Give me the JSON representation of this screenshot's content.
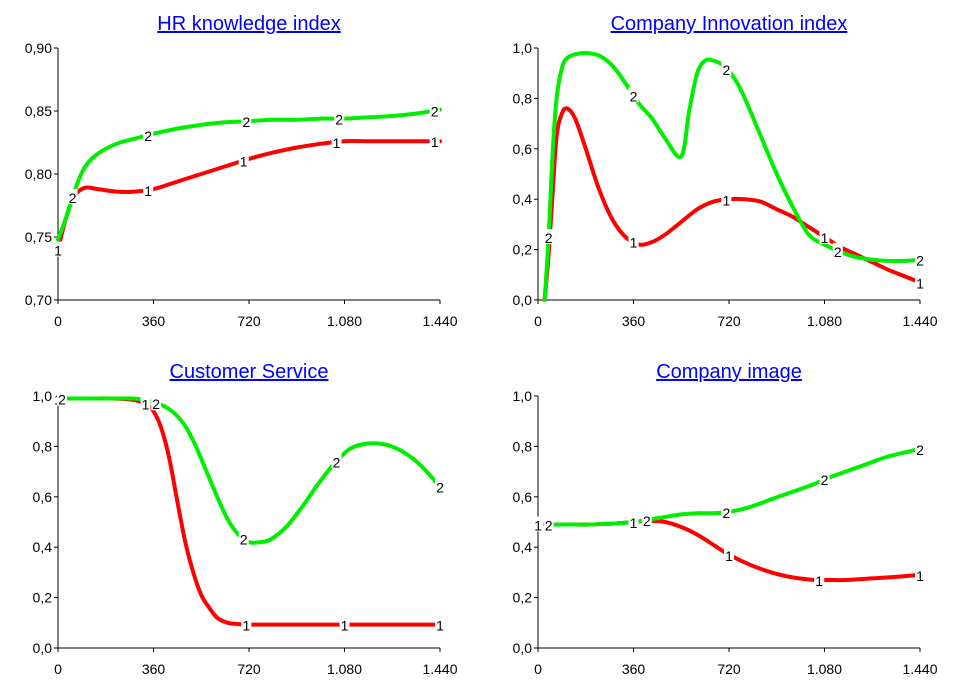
{
  "chart_data": [
    {
      "type": "line",
      "title": "HR knowledge index",
      "xlabel": "",
      "ylabel": "",
      "xlim": [
        0,
        1440
      ],
      "ylim": [
        0.7,
        0.9
      ],
      "x_ticks": [
        "0",
        "360",
        "720",
        "1.080",
        "1.440"
      ],
      "y_ticks": [
        "0,70",
        "0,75",
        "0,80",
        "0,85",
        "0,90"
      ],
      "series": [
        {
          "marker": "1",
          "color": "#ff0000",
          "x": [
            0,
            30,
            60,
            100,
            150,
            220,
            290,
            360,
            450,
            540,
            630,
            720,
            810,
            900,
            990,
            1080,
            1170,
            1260,
            1350,
            1440
          ],
          "y": [
            0.74,
            0.765,
            0.782,
            0.789,
            0.788,
            0.786,
            0.786,
            0.788,
            0.794,
            0.8,
            0.806,
            0.812,
            0.817,
            0.821,
            0.824,
            0.826,
            0.826,
            0.826,
            0.826,
            0.826
          ]
        },
        {
          "marker": "2",
          "color": "#00ee00",
          "x": [
            0,
            30,
            60,
            100,
            150,
            220,
            290,
            360,
            450,
            540,
            630,
            720,
            810,
            900,
            990,
            1080,
            1170,
            1260,
            1350,
            1440
          ],
          "y": [
            0.748,
            0.765,
            0.785,
            0.805,
            0.816,
            0.824,
            0.828,
            0.832,
            0.836,
            0.839,
            0.841,
            0.842,
            0.843,
            0.843,
            0.844,
            0.844,
            0.845,
            0.846,
            0.848,
            0.851
          ]
        }
      ],
      "marker_labels": [
        {
          "text": "1",
          "series": 0,
          "x": 0
        },
        {
          "text": "1",
          "series": 0,
          "x": 340
        },
        {
          "text": "1",
          "series": 0,
          "x": 700
        },
        {
          "text": "1",
          "series": 0,
          "x": 1050
        },
        {
          "text": "1",
          "series": 0,
          "x": 1420
        },
        {
          "text": "2",
          "series": 1,
          "x": 55
        },
        {
          "text": "2",
          "series": 1,
          "x": 340
        },
        {
          "text": "2",
          "series": 1,
          "x": 710
        },
        {
          "text": "2",
          "series": 1,
          "x": 1060
        },
        {
          "text": "2",
          "series": 1,
          "x": 1420
        }
      ]
    },
    {
      "type": "line",
      "title": "Company Innovation index",
      "xlabel": "",
      "ylabel": "",
      "xlim": [
        0,
        1440
      ],
      "ylim": [
        0.0,
        1.0
      ],
      "x_ticks": [
        "0",
        "360",
        "720",
        "1.080",
        "1.440"
      ],
      "y_ticks": [
        "0,0",
        "0,2",
        "0,4",
        "0,6",
        "0,8",
        "1,0"
      ],
      "series": [
        {
          "marker": "1",
          "color": "#ff0000",
          "x": [
            25,
            40,
            55,
            70,
            90,
            110,
            140,
            180,
            230,
            280,
            330,
            380,
            430,
            480,
            540,
            600,
            660,
            720,
            780,
            840,
            900,
            960,
            1020,
            1080,
            1140,
            1200,
            1260,
            1320,
            1380,
            1440
          ],
          "y": [
            0.0,
            0.18,
            0.42,
            0.65,
            0.74,
            0.76,
            0.72,
            0.6,
            0.44,
            0.32,
            0.25,
            0.22,
            0.23,
            0.26,
            0.31,
            0.36,
            0.39,
            0.4,
            0.4,
            0.39,
            0.36,
            0.33,
            0.29,
            0.25,
            0.21,
            0.18,
            0.15,
            0.12,
            0.095,
            0.07
          ]
        },
        {
          "marker": "2",
          "color": "#00ee00",
          "x": [
            25,
            40,
            55,
            70,
            90,
            110,
            140,
            180,
            230,
            280,
            330,
            380,
            430,
            480,
            540,
            570,
            600,
            630,
            660,
            700,
            740,
            780,
            840,
            900,
            960,
            1020,
            1080,
            1140,
            1200,
            1260,
            1320,
            1380,
            1440
          ],
          "y": [
            0.0,
            0.25,
            0.58,
            0.8,
            0.92,
            0.96,
            0.975,
            0.98,
            0.97,
            0.93,
            0.86,
            0.78,
            0.72,
            0.64,
            0.57,
            0.75,
            0.9,
            0.95,
            0.95,
            0.93,
            0.88,
            0.8,
            0.65,
            0.5,
            0.37,
            0.26,
            0.22,
            0.19,
            0.17,
            0.16,
            0.155,
            0.155,
            0.16
          ]
        }
      ],
      "marker_labels": [
        {
          "text": "1",
          "series": 0,
          "x": 360
        },
        {
          "text": "1",
          "series": 0,
          "x": 710
        },
        {
          "text": "1",
          "series": 0,
          "x": 1080
        },
        {
          "text": "1",
          "series": 0,
          "x": 1440
        },
        {
          "text": "2",
          "series": 1,
          "x": 40
        },
        {
          "text": "2",
          "series": 1,
          "x": 360
        },
        {
          "text": "2",
          "series": 1,
          "x": 710
        },
        {
          "text": "2",
          "series": 1,
          "x": 1130
        },
        {
          "text": "2",
          "series": 1,
          "x": 1440
        }
      ]
    },
    {
      "type": "line",
      "title": "Customer Service",
      "xlabel": "",
      "ylabel": "",
      "xlim": [
        0,
        1440
      ],
      "ylim": [
        0.0,
        1.0
      ],
      "x_ticks": [
        "0",
        "360",
        "720",
        "1.080",
        "1.440"
      ],
      "y_ticks": [
        "0,0",
        "0,2",
        "0,4",
        "0,6",
        "0,8",
        "1,0"
      ],
      "series": [
        {
          "marker": "1",
          "color": "#ff0000",
          "x": [
            0,
            100,
            200,
            280,
            330,
            360,
            390,
            420,
            450,
            480,
            510,
            540,
            570,
            600,
            640,
            680,
            720,
            800,
            900,
            1000,
            1100,
            1200,
            1300,
            1440
          ],
          "y": [
            0.99,
            0.99,
            0.99,
            0.985,
            0.97,
            0.94,
            0.87,
            0.75,
            0.58,
            0.42,
            0.3,
            0.21,
            0.16,
            0.12,
            0.1,
            0.095,
            0.093,
            0.093,
            0.093,
            0.093,
            0.093,
            0.093,
            0.093,
            0.093
          ]
        },
        {
          "marker": "2",
          "color": "#00ee00",
          "x": [
            0,
            100,
            200,
            280,
            330,
            360,
            400,
            440,
            480,
            520,
            560,
            600,
            640,
            680,
            720,
            760,
            800,
            860,
            920,
            980,
            1040,
            1100,
            1160,
            1220,
            1280,
            1340,
            1390,
            1440
          ],
          "y": [
            0.99,
            0.99,
            0.99,
            0.99,
            0.985,
            0.975,
            0.96,
            0.93,
            0.88,
            0.8,
            0.7,
            0.6,
            0.51,
            0.45,
            0.42,
            0.42,
            0.43,
            0.48,
            0.56,
            0.65,
            0.73,
            0.79,
            0.81,
            0.81,
            0.79,
            0.75,
            0.7,
            0.64
          ]
        }
      ],
      "marker_labels": [
        {
          "text": "1",
          "series": 0,
          "x": 0
        },
        {
          "text": "1",
          "series": 0,
          "x": 330
        },
        {
          "text": "1",
          "series": 0,
          "x": 710
        },
        {
          "text": "1",
          "series": 0,
          "x": 1080
        },
        {
          "text": "1",
          "series": 0,
          "x": 1440
        },
        {
          "text": "2",
          "series": 1,
          "x": 15
        },
        {
          "text": "2",
          "series": 1,
          "x": 370
        },
        {
          "text": "2",
          "series": 1,
          "x": 700
        },
        {
          "text": "2",
          "series": 1,
          "x": 1050
        },
        {
          "text": "2",
          "series": 1,
          "x": 1440
        }
      ]
    },
    {
      "type": "line",
      "title": "Company image",
      "xlabel": "",
      "ylabel": "",
      "xlim": [
        0,
        1440
      ],
      "ylim": [
        0.0,
        1.0
      ],
      "x_ticks": [
        "0",
        "360",
        "720",
        "1.080",
        "1.440"
      ],
      "y_ticks": [
        "0,0",
        "0,2",
        "0,4",
        "0,6",
        "0,8",
        "1,0"
      ],
      "series": [
        {
          "marker": "1",
          "color": "#ff0000",
          "x": [
            0,
            100,
            200,
            300,
            360,
            420,
            480,
            540,
            600,
            660,
            720,
            800,
            880,
            960,
            1040,
            1080,
            1160,
            1240,
            1320,
            1440
          ],
          "y": [
            0.49,
            0.49,
            0.49,
            0.495,
            0.5,
            0.505,
            0.5,
            0.48,
            0.45,
            0.41,
            0.37,
            0.33,
            0.3,
            0.28,
            0.27,
            0.27,
            0.27,
            0.275,
            0.28,
            0.29
          ]
        },
        {
          "marker": "2",
          "color": "#00ee00",
          "x": [
            0,
            100,
            200,
            300,
            360,
            420,
            480,
            540,
            600,
            660,
            720,
            800,
            880,
            960,
            1040,
            1080,
            1160,
            1240,
            1320,
            1440
          ],
          "y": [
            0.49,
            0.49,
            0.49,
            0.495,
            0.5,
            0.51,
            0.52,
            0.53,
            0.535,
            0.535,
            0.54,
            0.56,
            0.59,
            0.62,
            0.65,
            0.67,
            0.7,
            0.73,
            0.76,
            0.79
          ]
        }
      ],
      "marker_labels": [
        {
          "text": "1",
          "series": 0,
          "x": 0
        },
        {
          "text": "1",
          "series": 0,
          "x": 360
        },
        {
          "text": "1",
          "series": 0,
          "x": 720
        },
        {
          "text": "1",
          "series": 0,
          "x": 1060
        },
        {
          "text": "1",
          "series": 0,
          "x": 1440
        },
        {
          "text": "2",
          "series": 1,
          "x": 40
        },
        {
          "text": "2",
          "series": 1,
          "x": 410
        },
        {
          "text": "2",
          "series": 1,
          "x": 710
        },
        {
          "text": "2",
          "series": 1,
          "x": 1080
        },
        {
          "text": "2",
          "series": 1,
          "x": 1440
        }
      ]
    }
  ]
}
